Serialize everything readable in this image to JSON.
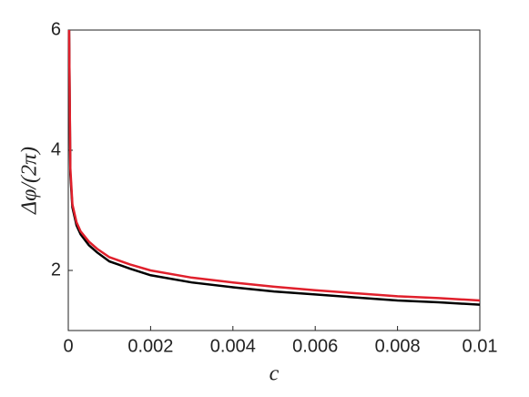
{
  "chart_data": {
    "type": "line",
    "x_label": "c",
    "y_label": "Δφ/(2π)",
    "x": [
      2e-05,
      5e-05,
      0.0001,
      0.0002,
      0.0003,
      0.0005,
      0.0007,
      0.001,
      0.0015,
      0.002,
      0.003,
      0.004,
      0.005,
      0.006,
      0.007,
      0.008,
      0.009,
      0.01
    ],
    "series": [
      {
        "color": "#000000",
        "values": [
          6,
          3.6,
          3.05,
          2.75,
          2.6,
          2.42,
          2.3,
          2.15,
          2.03,
          1.92,
          1.8,
          1.72,
          1.65,
          1.6,
          1.55,
          1.5,
          1.47,
          1.43
        ]
      },
      {
        "color": "#e0202c",
        "values": [
          6,
          3.7,
          3.1,
          2.8,
          2.65,
          2.48,
          2.36,
          2.22,
          2.1,
          2.0,
          1.88,
          1.8,
          1.73,
          1.67,
          1.62,
          1.57,
          1.54,
          1.5
        ]
      }
    ],
    "xlim": [
      0,
      0.01
    ],
    "xticks": [
      0,
      0.002,
      0.004,
      0.006,
      0.008,
      0.01
    ],
    "ylim": [
      1,
      6
    ],
    "yticks": [
      2,
      4,
      6
    ]
  }
}
